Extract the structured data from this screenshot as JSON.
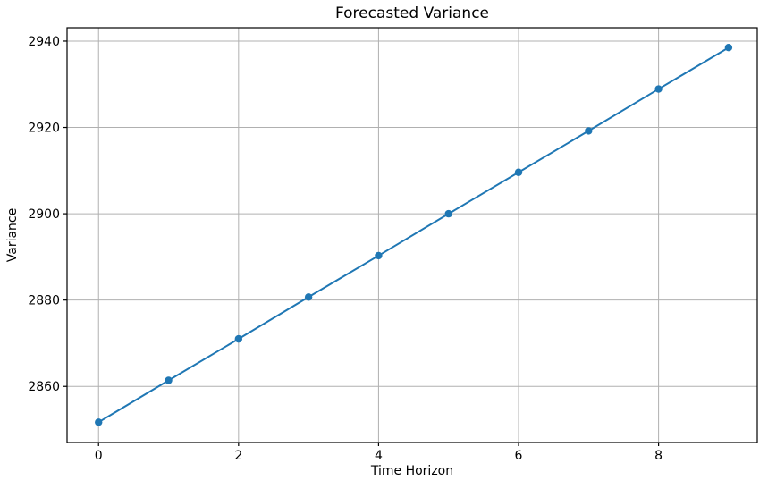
{
  "figure": {
    "background": "#ffffff"
  },
  "chart_data": {
    "type": "line",
    "title": "Forecasted Variance",
    "xlabel": "Time Horizon",
    "ylabel": "Variance",
    "x": [
      0,
      1,
      2,
      3,
      4,
      5,
      6,
      7,
      8,
      9
    ],
    "series": [
      {
        "name": "Forecasted Variance",
        "values": [
          2851.7,
          2861.4,
          2871.0,
          2880.7,
          2890.3,
          2900.0,
          2909.6,
          2919.2,
          2928.9,
          2938.5
        ],
        "color": "#1f77b4",
        "marker": "circle",
        "marker_diameter": 8.4,
        "line_width": 2
      }
    ],
    "xticks": [
      0,
      2,
      4,
      6,
      8
    ],
    "yticks": [
      2860,
      2880,
      2900,
      2920,
      2940
    ],
    "xlim": [
      -0.45,
      9.41
    ],
    "ylim": [
      2847.0,
      2943.1
    ],
    "grid": true,
    "legend": "none",
    "grid_color": "#b0b0b0",
    "spine_color": "#000000",
    "tick_color": "#000000",
    "text_color": "#000000",
    "tick_font_size": 14,
    "tick_length": 4
  }
}
